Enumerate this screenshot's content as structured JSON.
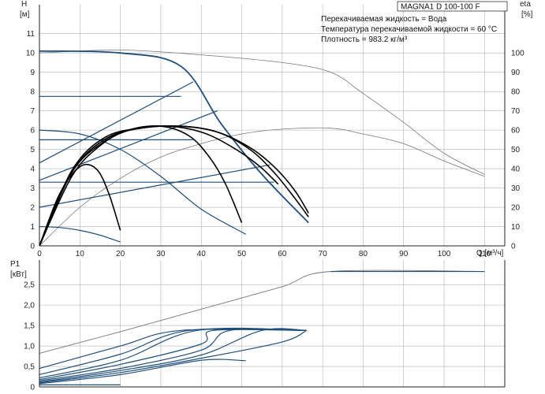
{
  "title": "MAGNA1 D 100-100 F",
  "info": [
    "Перекачиваемая жидкость = Вода",
    "Температура перекачиваемой жидкости = 60 °C",
    "Плотность = 983.2 кг/м³"
  ],
  "colors": {
    "curve": "#1f4e79",
    "efficiency": "#777777",
    "grid": "#b0b0b0",
    "axis": "#222222",
    "bold": "#000000"
  },
  "chart_data": [
    {
      "type": "line",
      "name": "head",
      "y_title": "H",
      "y_unit": "[м]",
      "y2_title": "eta",
      "y2_unit": "[%]",
      "x_unit": "Q [м³/ч]",
      "xlim": [
        0,
        115
      ],
      "ylim": [
        0,
        12.5
      ],
      "y2lim": [
        0,
        125
      ],
      "x_ticks": [
        0,
        10,
        20,
        30,
        40,
        50,
        60,
        70,
        80,
        90,
        100,
        110
      ],
      "x_tick_labels": [
        "0",
        "10",
        "20",
        "30",
        "40",
        "50",
        "60",
        "70",
        "80",
        "90",
        "100",
        "110"
      ],
      "y_ticks": [
        0,
        1,
        2,
        3,
        4,
        5,
        6,
        7,
        8,
        9,
        10,
        11
      ],
      "y_tick_labels": [
        "0",
        "1",
        "2",
        "3",
        "4",
        "5",
        "6",
        "7",
        "8",
        "9",
        "10",
        "11"
      ],
      "y2_ticks": [
        0,
        10,
        20,
        30,
        40,
        50,
        60,
        70,
        80,
        90,
        100
      ],
      "y2_tick_labels": [
        "0",
        "10",
        "20",
        "30",
        "40",
        "50",
        "60",
        "70",
        "80",
        "90",
        "100"
      ],
      "grid": true,
      "series": [
        {
          "kind": "max",
          "points": [
            [
              0,
              10.1
            ],
            [
              20,
              10.0
            ],
            [
              35,
              9.3
            ],
            [
              45,
              6.3
            ],
            [
              55,
              3.7
            ],
            [
              66.5,
              1.2
            ]
          ]
        },
        {
          "kind": "constant-pressure",
          "points": [
            [
              0,
              7.75
            ],
            [
              35,
              7.75
            ]
          ]
        },
        {
          "kind": "constant-pressure",
          "points": [
            [
              0,
              5.5
            ],
            [
              38,
              5.5
            ]
          ]
        },
        {
          "kind": "constant-pressure",
          "points": [
            [
              0,
              3.3
            ],
            [
              58,
              3.3
            ]
          ]
        },
        {
          "kind": "proportional-pressure",
          "points": [
            [
              0,
              4.3
            ],
            [
              38,
              8.5
            ]
          ]
        },
        {
          "kind": "proportional-pressure",
          "points": [
            [
              0,
              3.4
            ],
            [
              44,
              7.0
            ]
          ]
        },
        {
          "kind": "proportional-pressure",
          "points": [
            [
              0,
              2.0
            ],
            [
              57,
              4.2
            ]
          ]
        },
        {
          "kind": "speed",
          "points": [
            [
              0,
              6.0
            ],
            [
              10,
              5.8
            ],
            [
              20,
              5.0
            ],
            [
              30,
              3.6
            ],
            [
              40,
              1.9
            ],
            [
              51,
              0.6
            ]
          ]
        },
        {
          "kind": "speed",
          "points": [
            [
              0,
              1.0
            ],
            [
              5,
              0.95
            ],
            [
              10,
              0.8
            ],
            [
              15,
              0.55
            ],
            [
              20,
              0.2
            ]
          ]
        },
        {
          "kind": "auto",
          "bold": true,
          "points": [
            [
              0,
              0
            ],
            [
              5,
              2.7
            ],
            [
              10,
              4.1
            ],
            [
              14,
              4.0
            ],
            [
              17,
              2.8
            ],
            [
              20,
              0.8
            ]
          ]
        },
        {
          "kind": "auto",
          "bold": true,
          "points": [
            [
              0,
              0
            ],
            [
              8,
              3.6
            ],
            [
              15,
              5.2
            ],
            [
              22,
              6.0
            ],
            [
              30,
              6.2
            ],
            [
              37,
              5.7
            ],
            [
              42,
              4.6
            ],
            [
              46,
              3.2
            ],
            [
              50,
              1.2
            ]
          ]
        },
        {
          "kind": "auto",
          "bold": true,
          "points": [
            [
              0,
              0
            ],
            [
              8,
              3.8
            ],
            [
              16,
              5.4
            ],
            [
              24,
              6.1
            ],
            [
              32,
              6.2
            ],
            [
              40,
              5.9
            ],
            [
              47,
              5.2
            ],
            [
              54,
              4.2
            ],
            [
              59,
              3.2
            ]
          ]
        },
        {
          "kind": "auto",
          "bold": true,
          "points": [
            [
              0,
              0
            ],
            [
              8,
              3.8
            ],
            [
              16,
              5.5
            ],
            [
              25,
              6.1
            ],
            [
              35,
              6.2
            ],
            [
              44,
              5.9
            ],
            [
              52,
              5.0
            ],
            [
              58,
              3.8
            ],
            [
              63,
              2.5
            ],
            [
              66.5,
              1.5
            ]
          ]
        },
        {
          "kind": "auto",
          "bold": true,
          "points": [
            [
              0,
              0
            ],
            [
              8,
              3.9
            ],
            [
              16,
              5.6
            ],
            [
              25,
              6.1
            ],
            [
              35,
              6.2
            ],
            [
              44,
              5.9
            ],
            [
              52,
              5.1
            ],
            [
              58,
              4.1
            ],
            [
              63,
              2.9
            ],
            [
              66.5,
              1.7
            ]
          ]
        }
      ],
      "efficiency": [
        {
          "points": [
            [
              0,
              0
            ],
            [
              10,
              20
            ],
            [
              20,
              35
            ],
            [
              30,
              46
            ],
            [
              40,
              53
            ],
            [
              50,
              58
            ],
            [
              60,
              60.5
            ],
            [
              72,
              61
            ],
            [
              80,
              58
            ],
            [
              90,
              53
            ],
            [
              100,
              44
            ],
            [
              110,
              36
            ]
          ]
        },
        {
          "points": [
            [
              0,
              100
            ],
            [
              20,
              101.5
            ],
            [
              40,
              99
            ],
            [
              60,
              95
            ],
            [
              72,
              90
            ],
            [
              80,
              79
            ],
            [
              90,
              64
            ],
            [
              100,
              48
            ],
            [
              110,
              37
            ]
          ]
        }
      ]
    },
    {
      "type": "line",
      "name": "power",
      "y_title": "P1",
      "y_unit": "[кВт]",
      "xlim": [
        0,
        115
      ],
      "ylim": [
        0,
        3.1
      ],
      "y_ticks": [
        0,
        0.5,
        1.0,
        1.5,
        2.0,
        2.5
      ],
      "y_tick_labels": [
        "0",
        "0,5",
        "1,0",
        "1,5",
        "2,0",
        "2,5"
      ],
      "grid": true,
      "series": [
        {
          "kind": "max",
          "points": [
            [
              0,
              0.82
            ],
            [
              20,
              1.35
            ],
            [
              40,
              1.9
            ],
            [
              60,
              2.45
            ],
            [
              72,
              2.82
            ],
            [
              110,
              2.82
            ]
          ]
        },
        {
          "kind": "speed",
          "points": [
            [
              0,
              0.45
            ],
            [
              20,
              1.0
            ],
            [
              35,
              1.38
            ],
            [
              66,
              1.38
            ]
          ]
        },
        {
          "kind": "speed",
          "points": [
            [
              0,
              0.3
            ],
            [
              20,
              0.8
            ],
            [
              37,
              1.38
            ],
            [
              66,
              1.38
            ]
          ]
        },
        {
          "kind": "speed",
          "points": [
            [
              0,
              0.22
            ],
            [
              20,
              0.65
            ],
            [
              39,
              1.38
            ],
            [
              66,
              1.38
            ]
          ]
        },
        {
          "kind": "speed",
          "points": [
            [
              0,
              0.18
            ],
            [
              20,
              0.55
            ],
            [
              40,
              1.05
            ],
            [
              43,
              1.38
            ],
            [
              66,
              1.38
            ]
          ]
        },
        {
          "kind": "speed",
          "points": [
            [
              0,
              0.15
            ],
            [
              20,
              0.45
            ],
            [
              40,
              0.9
            ],
            [
              47,
              1.38
            ],
            [
              66,
              1.38
            ]
          ]
        },
        {
          "kind": "speed",
          "points": [
            [
              0,
              0.12
            ],
            [
              20,
              0.4
            ],
            [
              40,
              0.78
            ],
            [
              55,
              1.38
            ],
            [
              66,
              1.38
            ]
          ]
        },
        {
          "kind": "speed",
          "points": [
            [
              0,
              0.1
            ],
            [
              20,
              0.35
            ],
            [
              40,
              0.7
            ],
            [
              60,
              1.1
            ],
            [
              66,
              1.38
            ]
          ]
        },
        {
          "kind": "speed",
          "points": [
            [
              0,
              0.08
            ],
            [
              20,
              0.3
            ],
            [
              40,
              0.65
            ],
            [
              51,
              0.64
            ]
          ]
        },
        {
          "kind": "speed",
          "points": [
            [
              0,
              0.05
            ],
            [
              20,
              0.05
            ]
          ]
        }
      ]
    }
  ]
}
